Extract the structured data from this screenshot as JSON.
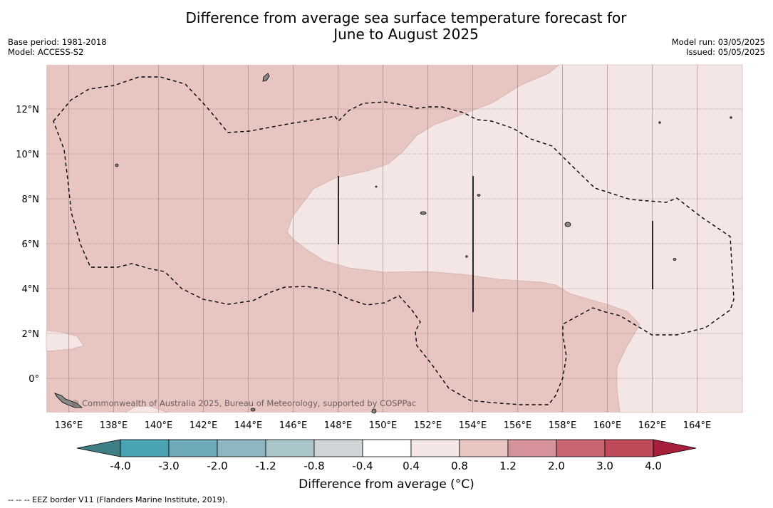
{
  "title": {
    "line1": "Difference from average sea surface temperature forecast for",
    "line2": "June to August 2025"
  },
  "meta_left": {
    "base_period": "Base period: 1981-2018",
    "model": "Model: ACCESS-S2"
  },
  "meta_right": {
    "model_run": "Model run: 03/05/2025",
    "issued": "Issued: 05/05/2025"
  },
  "map": {
    "lon_range": [
      135,
      166
    ],
    "lat_range": [
      -1.5,
      14
    ],
    "x_ticks": [
      "136°E",
      "138°E",
      "140°E",
      "142°E",
      "144°E",
      "146°E",
      "148°E",
      "150°E",
      "152°E",
      "154°E",
      "156°E",
      "158°E",
      "160°E",
      "162°E",
      "164°E"
    ],
    "y_ticks": [
      "12°N",
      "10°N",
      "8°N",
      "6°N",
      "4°N",
      "2°N",
      "0°"
    ],
    "credit": "© Commonwealth of Australia 2025, Bureau of Meteorology, supported by COSPPac",
    "colors": {
      "band_0_4_0_8": "#f4e6e4",
      "band_0_8_1_2": "#e7c6c2"
    }
  },
  "colorbar": {
    "ticks": [
      "-4.0",
      "-3.0",
      "-2.0",
      "-1.2",
      "-0.8",
      "-0.4",
      "0.4",
      "0.8",
      "1.2",
      "2.0",
      "3.0",
      "4.0"
    ],
    "colors": [
      "#3e7f86",
      "#4aa3b2",
      "#6ea9b9",
      "#8db6c1",
      "#a9c5c9",
      "#cfd5d6",
      "#ffffff",
      "#f4e6e4",
      "#e7c6c2",
      "#d5929a",
      "#c8646f",
      "#bf4a59",
      "#a81f3b"
    ],
    "label": "Difference from average (°C)"
  },
  "footer": "--  --  -- EEZ border V11 (Flanders Marine Institute, 2019)."
}
